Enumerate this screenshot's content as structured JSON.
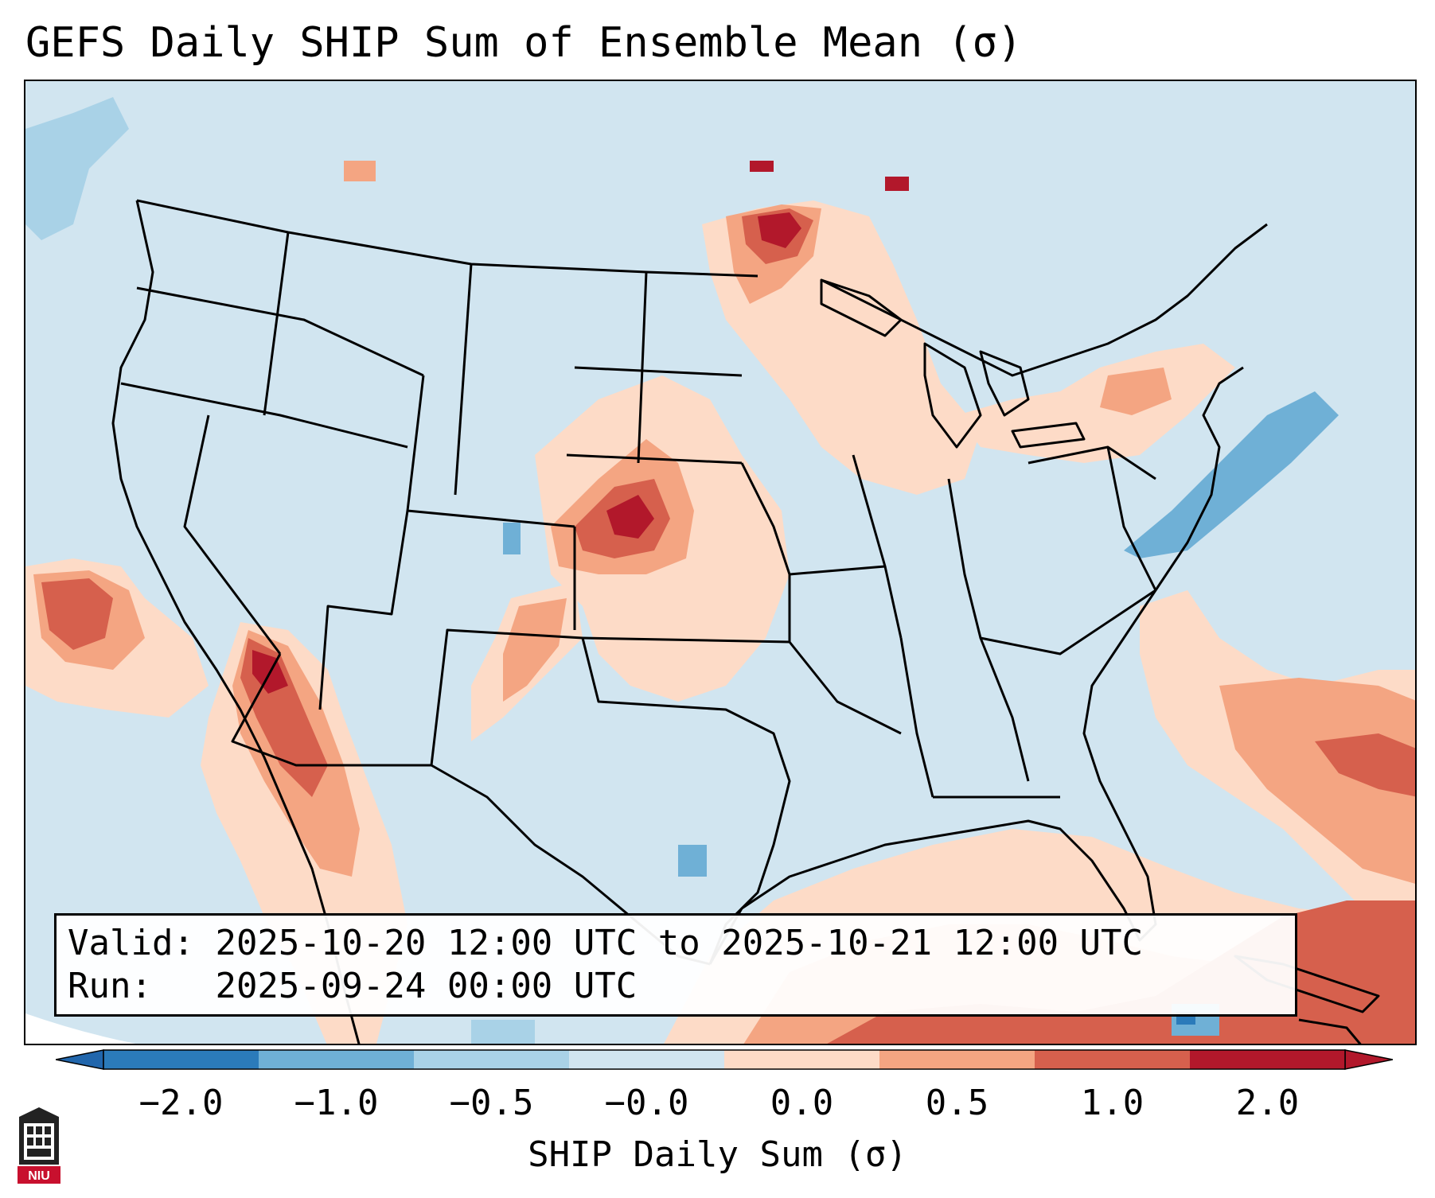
{
  "title": "GEFS Daily SHIP Sum of Ensemble Mean (σ)",
  "info": {
    "valid_label": "Valid:",
    "valid_value": "2025-10-20 12:00 UTC to 2025-10-21 12:00 UTC",
    "run_label": "Run:",
    "run_value": "2025-09-24 00:00 UTC"
  },
  "colorbar": {
    "label": "SHIP Daily Sum (σ)",
    "ticks": [
      "−2.0",
      "−1.0",
      "−0.5",
      "−0.0",
      "0.0",
      "0.5",
      "1.0",
      "2.0"
    ],
    "colors": [
      "#2b7bba",
      "#6fb0d6",
      "#a9d2e7",
      "#d1e5f0",
      "#fddbc7",
      "#f4a582",
      "#d6604d",
      "#b2182b"
    ],
    "below_color": "#2166ac",
    "above_color": "#b2182b"
  },
  "map": {
    "region": "CONUS",
    "colors": {
      "background": "#d1e5f0",
      "light_red": "#fddbc7",
      "red": "#f4a582",
      "dark_red": "#d6604d",
      "darkest_red": "#b2182b",
      "light_blue": "#a9d2e7",
      "blue": "#6fb0d6"
    }
  },
  "logo_text": "NIU"
}
